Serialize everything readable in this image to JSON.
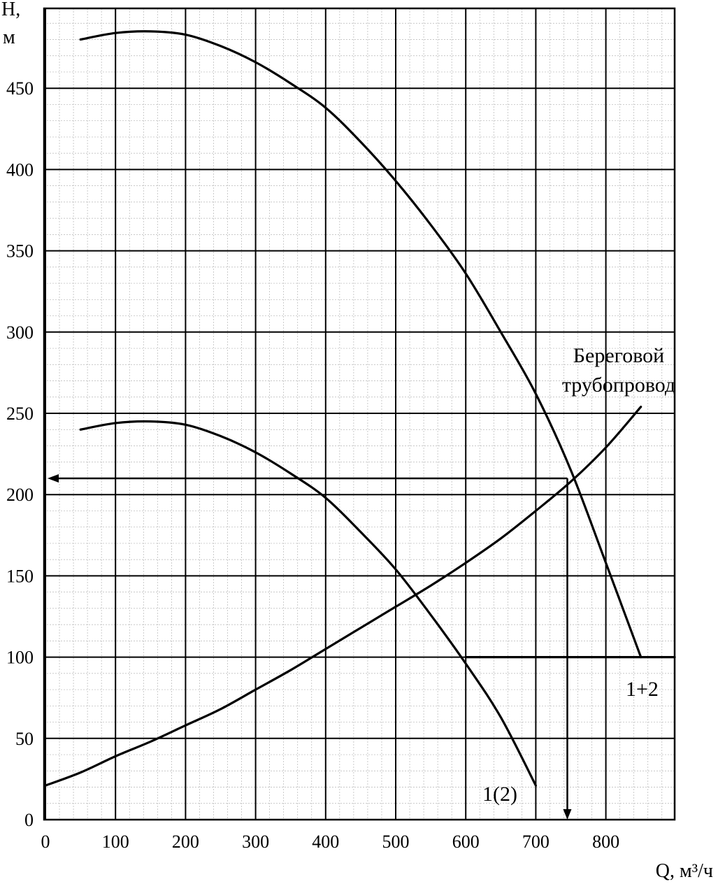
{
  "chart_data": {
    "type": "line",
    "xlabel": "Q,  м³/ч",
    "ylabel_line1": "H,",
    "ylabel_line2": "м",
    "xlim": [
      0,
      900
    ],
    "ylim": [
      0,
      490
    ],
    "x_ticks": [
      0,
      100,
      200,
      300,
      400,
      500,
      600,
      700,
      800
    ],
    "y_ticks": [
      0,
      50,
      100,
      150,
      200,
      250,
      300,
      350,
      400,
      450
    ],
    "minor_x_step": 20,
    "minor_y_step": 10,
    "grid": true,
    "series": [
      {
        "name": "1+2",
        "points": [
          [
            50,
            480
          ],
          [
            100,
            484
          ],
          [
            150,
            485
          ],
          [
            200,
            483
          ],
          [
            250,
            476
          ],
          [
            300,
            466
          ],
          [
            350,
            453
          ],
          [
            400,
            438
          ],
          [
            450,
            417
          ],
          [
            500,
            393
          ],
          [
            550,
            366
          ],
          [
            600,
            336
          ],
          [
            650,
            300
          ],
          [
            700,
            262
          ],
          [
            750,
            215
          ],
          [
            800,
            158
          ],
          [
            850,
            100
          ]
        ]
      },
      {
        "name": "1(2)",
        "points": [
          [
            50,
            240
          ],
          [
            100,
            244
          ],
          [
            150,
            245
          ],
          [
            200,
            243
          ],
          [
            250,
            236
          ],
          [
            300,
            226
          ],
          [
            350,
            213
          ],
          [
            400,
            198
          ],
          [
            450,
            177
          ],
          [
            500,
            154
          ],
          [
            550,
            126
          ],
          [
            600,
            96
          ],
          [
            650,
            63
          ],
          [
            700,
            21
          ]
        ]
      },
      {
        "name": "Береговой трубопровод",
        "label_line1": "Береговой",
        "label_line2": "трубопровод",
        "points": [
          [
            0,
            21
          ],
          [
            50,
            29
          ],
          [
            100,
            39
          ],
          [
            150,
            48
          ],
          [
            200,
            58
          ],
          [
            250,
            68
          ],
          [
            300,
            80
          ],
          [
            350,
            92
          ],
          [
            400,
            105
          ],
          [
            450,
            118
          ],
          [
            500,
            131
          ],
          [
            550,
            144
          ],
          [
            600,
            158
          ],
          [
            650,
            173
          ],
          [
            700,
            190
          ],
          [
            750,
            208
          ],
          [
            800,
            229
          ],
          [
            850,
            254
          ]
        ]
      }
    ],
    "horizontal_line": {
      "y": 100,
      "x_from": 600,
      "x_to": 900
    },
    "operating_point": {
      "x": 745,
      "y": 210
    }
  }
}
